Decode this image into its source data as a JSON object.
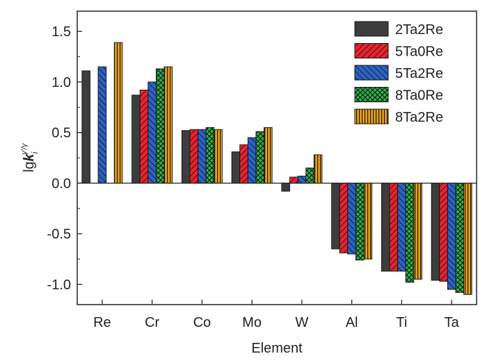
{
  "chart_data": {
    "type": "bar",
    "categories": [
      "Re",
      "Cr",
      "Co",
      "Mo",
      "W",
      "Al",
      "Ti",
      "Ta"
    ],
    "series": [
      {
        "name": "2Ta2Re",
        "color": "#3d3d3d",
        "pattern": "solid",
        "values": [
          1.11,
          0.87,
          0.52,
          0.31,
          -0.08,
          -0.65,
          -0.87,
          -0.96
        ]
      },
      {
        "name": "5Ta0Re",
        "color": "#e8232f",
        "pattern": "diagonal-hatch",
        "values": [
          null,
          0.92,
          0.53,
          0.38,
          0.06,
          -0.69,
          -0.87,
          -0.97
        ]
      },
      {
        "name": "5Ta2Re",
        "color": "#2c62c4",
        "pattern": "diagonal-hatch",
        "values": [
          1.15,
          1.0,
          0.53,
          0.45,
          0.07,
          -0.7,
          -0.87,
          -1.05
        ]
      },
      {
        "name": "8Ta0Re",
        "color": "#2db34a",
        "pattern": "cross-hatch",
        "values": [
          null,
          1.13,
          0.55,
          0.51,
          0.15,
          -0.76,
          -0.98,
          -1.08
        ]
      },
      {
        "name": "8Ta2Re",
        "color": "#e59f1c",
        "pattern": "vertical-lines",
        "values": [
          1.39,
          1.15,
          0.53,
          0.55,
          0.28,
          -0.75,
          -0.95,
          -1.1
        ]
      }
    ],
    "xlabel": "Element",
    "ylabel": {
      "prefix": "lg",
      "k": "k",
      "sub": "i",
      "sup": "γ'/γ"
    },
    "yticks": [
      "-1.0",
      "-0.5",
      "0.0",
      "0.5",
      "1.0",
      "1.5"
    ],
    "ylim": [
      -1.2,
      1.7
    ],
    "legend_position": "top-right",
    "grid": false
  }
}
